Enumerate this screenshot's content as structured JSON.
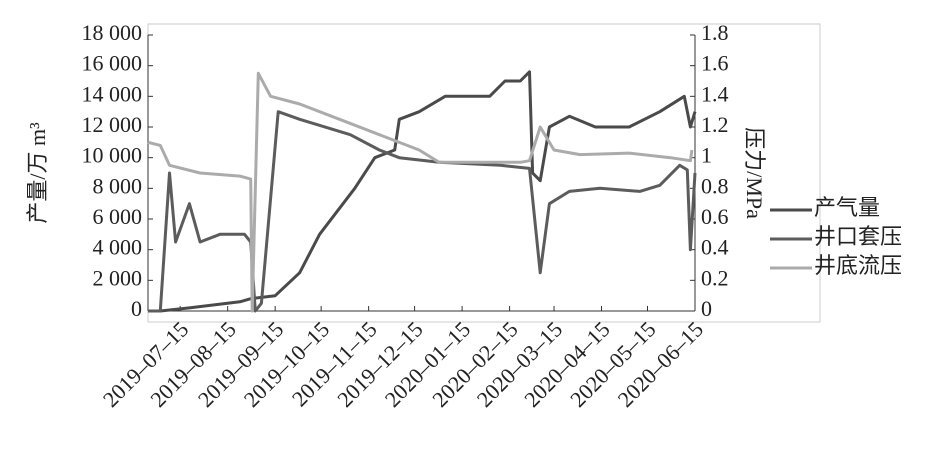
{
  "chart_data": {
    "type": "line",
    "ylabel": "产量/万 m³",
    "y2label": "压力/MPa",
    "xlim": [
      "2019-06-24",
      "2020-06-15"
    ],
    "xticks": [
      {
        "value": "2019-07-15",
        "label": "2019–07–15"
      },
      {
        "value": "2019-08-15",
        "label": "2019–08–15"
      },
      {
        "value": "2019-09-15",
        "label": "2019–09–15"
      },
      {
        "value": "2019-10-15",
        "label": "2019–10–15"
      },
      {
        "value": "2019-11-15",
        "label": "2019–11–15"
      },
      {
        "value": "2019-12-15",
        "label": "2019–12–15"
      },
      {
        "value": "2020-01-15",
        "label": "2020–01–15"
      },
      {
        "value": "2020-02-15",
        "label": "2020–02–15"
      },
      {
        "value": "2020-03-15",
        "label": "2020–03–15"
      },
      {
        "value": "2020-04-15",
        "label": "2020–04–15"
      },
      {
        "value": "2020-05-15",
        "label": "2020–05–15"
      },
      {
        "value": "2020-06-15",
        "label": "2020–06–15"
      }
    ],
    "ylim": [
      0,
      18000
    ],
    "yticks": [
      0,
      {
        "value": 2000,
        "label": "2 000"
      },
      {
        "value": 4000,
        "label": "4 000"
      },
      {
        "value": 6000,
        "label": "6 000"
      },
      {
        "value": 8000,
        "label": "8 000"
      },
      {
        "value": 10000,
        "label": "10 000"
      },
      {
        "value": 12000,
        "label": "12 000"
      },
      {
        "value": 14000,
        "label": "14 000"
      },
      {
        "value": 16000,
        "label": "16 000"
      },
      {
        "value": 18000,
        "label": "18 000"
      }
    ],
    "y2lim": [
      0,
      1.8
    ],
    "y2ticks": [
      0,
      0.2,
      0.4,
      0.6,
      0.8,
      1,
      1.2,
      1.4,
      1.6,
      1.8
    ],
    "series": [
      {
        "name": "产气量",
        "color": "#4a4a4a",
        "x": [
          "2019-06-24",
          "2019-07-02",
          "2019-07-21",
          "2019-08-23",
          "2019-08-30",
          "2019-09-15",
          "2019-10-01",
          "2019-10-14",
          "2019-11-06",
          "2019-11-19",
          "2019-12-02",
          "2019-12-05",
          "2019-12-18",
          "2020-01-04",
          "2020-02-02",
          "2020-02-12",
          "2020-02-22",
          "2020-02-28",
          "2020-03-01",
          "2020-03-06",
          "2020-03-12",
          "2020-03-25",
          "2020-04-11",
          "2020-05-03",
          "2020-05-23",
          "2020-06-08",
          "2020-06-12",
          "2020-06-15"
        ],
        "values": [
          0,
          0,
          200,
          600,
          800,
          1000,
          2500,
          5000,
          8000,
          10000,
          10500,
          12500,
          13000,
          14000,
          14000,
          15000,
          15000,
          15600,
          9000,
          8500,
          12000,
          12700,
          12000,
          12000,
          13000,
          14000,
          12000,
          13000
        ]
      },
      {
        "name": "井口套压",
        "color": "#5c5c5c",
        "x": [
          "2019-06-24",
          "2019-07-02",
          "2019-07-08",
          "2019-07-12",
          "2019-07-21",
          "2019-07-28",
          "2019-08-10",
          "2019-08-26",
          "2019-08-30",
          "2019-09-02",
          "2019-09-06",
          "2019-09-17",
          "2019-10-01",
          "2019-11-03",
          "2019-11-22",
          "2019-12-05",
          "2019-12-31",
          "2020-02-09",
          "2020-02-28",
          "2020-03-06",
          "2020-03-12",
          "2020-03-25",
          "2020-04-14",
          "2020-05-10",
          "2020-05-23",
          "2020-06-05",
          "2020-06-10",
          "2020-06-12",
          "2020-06-15"
        ],
        "values": [
          0,
          0,
          0.9,
          0.45,
          0.7,
          0.45,
          0.5,
          0.5,
          0.45,
          0,
          0.05,
          1.3,
          1.25,
          1.15,
          1.05,
          1,
          0.97,
          0.95,
          0.93,
          0.25,
          0.7,
          0.78,
          0.8,
          0.78,
          0.82,
          0.95,
          0.92,
          0.4,
          0.9
        ],
        "axis": "y2"
      },
      {
        "name": "井底流压",
        "color": "#ababab",
        "x": [
          "2019-06-24",
          "2019-07-02",
          "2019-07-08",
          "2019-07-28",
          "2019-08-23",
          "2019-08-30",
          "2019-08-31",
          "2019-09-04",
          "2019-09-12",
          "2019-10-01",
          "2019-10-27",
          "2019-11-22",
          "2019-12-18",
          "2019-12-31",
          "2020-02-22",
          "2020-02-28",
          "2020-03-06",
          "2020-03-15",
          "2020-04-01",
          "2020-05-03",
          "2020-05-30",
          "2020-06-12",
          "2020-06-13"
        ],
        "values": [
          1.1,
          1.08,
          0.95,
          0.9,
          0.88,
          0.86,
          0,
          1.55,
          1.4,
          1.35,
          1.25,
          1.15,
          1.05,
          0.97,
          0.97,
          0.98,
          1.2,
          1.05,
          1.02,
          1.03,
          1,
          0.98,
          1.05
        ],
        "axis": "y2"
      }
    ]
  }
}
